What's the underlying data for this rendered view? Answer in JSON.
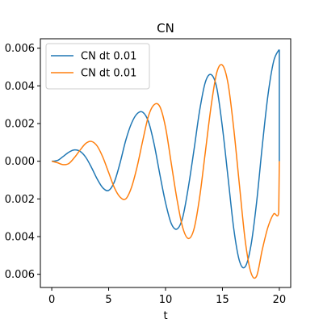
{
  "chart_data": {
    "type": "line",
    "title": "CN",
    "xlabel": "t",
    "ylabel": "",
    "xlim": [
      -1,
      21
    ],
    "ylim": [
      -0.0067,
      0.0065
    ],
    "xticks": [
      0,
      5,
      10,
      15,
      20
    ],
    "xtick_labels": [
      "0",
      "5",
      "10",
      "15",
      "20"
    ],
    "yticks": [
      -0.006,
      -0.004,
      -0.002,
      0.0,
      0.002,
      0.004,
      0.006
    ],
    "ytick_labels": [
      "0.006",
      "0.004",
      "0.002",
      "0.000",
      "0.002",
      "0.004",
      "0.006"
    ],
    "legend_position": "upper-left",
    "series": [
      {
        "name": "CN dt 0.01",
        "color": "#1f77b4",
        "x": [
          0,
          0.5,
          1,
          1.5,
          2,
          2.5,
          3,
          3.5,
          4,
          4.5,
          5,
          5.5,
          6,
          6.5,
          7,
          7.5,
          8,
          8.5,
          9,
          9.5,
          10,
          10.5,
          11,
          11.5,
          12,
          12.5,
          13,
          13.5,
          14,
          14.5,
          15,
          15.5,
          16,
          16.5,
          17,
          17.5,
          18,
          18.5,
          19,
          19.5,
          19.95,
          20,
          20
        ],
        "y": [
          0.0,
          4e-05,
          0.00025,
          0.00048,
          0.0006,
          0.00052,
          0.0002,
          -0.00034,
          -0.00095,
          -0.00142,
          -0.00155,
          -0.0011,
          -0.0001,
          0.0011,
          0.002,
          0.00252,
          0.0026,
          0.0021,
          0.0009,
          -0.0007,
          -0.0022,
          -0.0033,
          -0.0036,
          -0.003,
          -0.0014,
          0.0006,
          0.0027,
          0.0042,
          0.0046,
          0.0039,
          0.0018,
          -0.0009,
          -0.0036,
          -0.0053,
          -0.0056,
          -0.0045,
          -0.0022,
          0.0008,
          0.0035,
          0.0053,
          0.0059,
          0.0059,
          0.0
        ]
      },
      {
        "name": "CN dt 0.01",
        "color": "#ff7f0e",
        "x": [
          0,
          0.5,
          1,
          1.5,
          2,
          2.5,
          3,
          3.5,
          4,
          4.5,
          5,
          5.5,
          6,
          6.5,
          7,
          7.5,
          8,
          8.5,
          9,
          9.5,
          10,
          10.5,
          11,
          11.5,
          12,
          12.5,
          13,
          13.5,
          14,
          14.5,
          15,
          15.5,
          16,
          16.5,
          17,
          17.5,
          18,
          18.5,
          19,
          19.5,
          19.95,
          20,
          20
        ],
        "y": [
          0.0,
          -8e-05,
          -0.00018,
          -0.00012,
          0.0002,
          0.0006,
          0.00095,
          0.00105,
          0.0008,
          0.0002,
          -0.0006,
          -0.0014,
          -0.0019,
          -0.002,
          -0.0014,
          -0.0003,
          0.0011,
          0.0024,
          0.003,
          0.0029,
          0.0018,
          -0.0001,
          -0.002,
          -0.0035,
          -0.0041,
          -0.0036,
          -0.0019,
          0.0005,
          0.0029,
          0.0047,
          0.0051,
          0.0041,
          0.0017,
          -0.0013,
          -0.0042,
          -0.0059,
          -0.0061,
          -0.0047,
          -0.0035,
          -0.0028,
          -0.0027,
          0.0,
          0.0
        ]
      }
    ]
  }
}
